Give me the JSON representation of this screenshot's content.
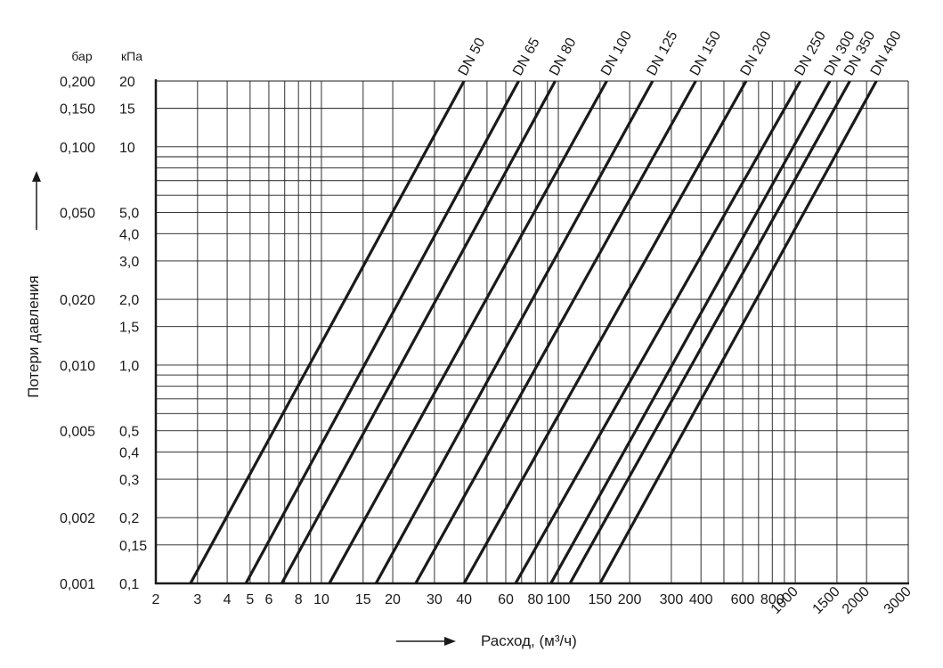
{
  "chart_data": {
    "type": "line",
    "x_scale": "log",
    "y_scale": "log",
    "xlim": [
      2,
      3000
    ],
    "ylim_kpa": [
      0.1,
      20
    ],
    "grid": true,
    "xlabel": "Расход, (м³/ч)",
    "ylabel": "Потери давления",
    "y_unit_left": "бар",
    "y_unit_right": "кПа",
    "x_ticks": [
      {
        "value": 2,
        "label": "2"
      },
      {
        "value": 3,
        "label": "3"
      },
      {
        "value": 4,
        "label": "4"
      },
      {
        "value": 5,
        "label": "5"
      },
      {
        "value": 6,
        "label": "6"
      },
      {
        "value": 8,
        "label": "8"
      },
      {
        "value": 10,
        "label": "10"
      },
      {
        "value": 15,
        "label": "15"
      },
      {
        "value": 20,
        "label": "20"
      },
      {
        "value": 30,
        "label": "30"
      },
      {
        "value": 40,
        "label": "40"
      },
      {
        "value": 60,
        "label": "60"
      },
      {
        "value": 80,
        "label": "80"
      },
      {
        "value": 100,
        "label": "100"
      },
      {
        "value": 150,
        "label": "150"
      },
      {
        "value": 200,
        "label": "200"
      },
      {
        "value": 300,
        "label": "300"
      },
      {
        "value": 400,
        "label": "400"
      },
      {
        "value": 600,
        "label": "600"
      },
      {
        "value": 800,
        "label": "800"
      }
    ],
    "x_ticks_rotated": [
      {
        "value": 1000,
        "label": "1000"
      },
      {
        "value": 1500,
        "label": "1500"
      },
      {
        "value": 2000,
        "label": "2000"
      },
      {
        "value": 3000,
        "label": "3000"
      }
    ],
    "y_ticks_kpa": [
      {
        "value": 20,
        "label": "20"
      },
      {
        "value": 15,
        "label": "15"
      },
      {
        "value": 10,
        "label": "10"
      },
      {
        "value": 5,
        "label": "5,0"
      },
      {
        "value": 4,
        "label": "4,0"
      },
      {
        "value": 3,
        "label": "3,0"
      },
      {
        "value": 2,
        "label": "2,0"
      },
      {
        "value": 1.5,
        "label": "1,5"
      },
      {
        "value": 1,
        "label": "1,0"
      },
      {
        "value": 0.5,
        "label": "0,5"
      },
      {
        "value": 0.4,
        "label": "0,4"
      },
      {
        "value": 0.3,
        "label": "0,3"
      },
      {
        "value": 0.2,
        "label": "0,2"
      },
      {
        "value": 0.15,
        "label": "0,15"
      },
      {
        "value": 0.1,
        "label": "0,1"
      }
    ],
    "y_ticks_bar": [
      {
        "value": 20,
        "label": "0,200"
      },
      {
        "value": 15,
        "label": "0,150"
      },
      {
        "value": 10,
        "label": "0,100"
      },
      {
        "value": 5,
        "label": "0,050"
      },
      {
        "value": 2,
        "label": "0,020"
      },
      {
        "value": 1,
        "label": "0,010"
      },
      {
        "value": 0.5,
        "label": "0,005"
      },
      {
        "value": 0.2,
        "label": "0,002"
      },
      {
        "value": 0.1,
        "label": "0,001"
      }
    ],
    "x_grid": [
      3,
      4,
      5,
      6,
      7,
      8,
      9,
      10,
      15,
      20,
      30,
      40,
      50,
      60,
      70,
      80,
      90,
      100,
      150,
      200,
      300,
      400,
      500,
      600,
      700,
      800,
      900,
      1000,
      1500,
      2000
    ],
    "y_grid_kpa": [
      0.15,
      0.2,
      0.3,
      0.4,
      0.5,
      0.6,
      0.7,
      0.8,
      0.9,
      1,
      1.5,
      2,
      3,
      4,
      5,
      6,
      7,
      8,
      9,
      10,
      15
    ],
    "series": [
      {
        "name": "DN 50",
        "x": [
          2.8,
          40
        ],
        "y_kpa": [
          0.1,
          20
        ]
      },
      {
        "name": "DN 65",
        "x": [
          4.8,
          68
        ],
        "y_kpa": [
          0.1,
          20
        ]
      },
      {
        "name": "DN 80",
        "x": [
          6.8,
          97
        ],
        "y_kpa": [
          0.1,
          20
        ]
      },
      {
        "name": "DN 100",
        "x": [
          10.8,
          160
        ],
        "y_kpa": [
          0.1,
          20
        ]
      },
      {
        "name": "DN 125",
        "x": [
          17,
          250
        ],
        "y_kpa": [
          0.1,
          20
        ]
      },
      {
        "name": "DN 150",
        "x": [
          25,
          380
        ],
        "y_kpa": [
          0.1,
          20
        ]
      },
      {
        "name": "DN 200",
        "x": [
          40,
          620
        ],
        "y_kpa": [
          0.1,
          20
        ]
      },
      {
        "name": "DN 250",
        "x": [
          66,
          1050
        ],
        "y_kpa": [
          0.1,
          20
        ]
      },
      {
        "name": "DN 300",
        "x": [
          93,
          1400
        ],
        "y_kpa": [
          0.1,
          20
        ]
      },
      {
        "name": "DN 350",
        "x": [
          112,
          1700
        ],
        "y_kpa": [
          0.1,
          20
        ]
      },
      {
        "name": "DN 400",
        "x": [
          150,
          2200
        ],
        "y_kpa": [
          0.1,
          20
        ]
      }
    ],
    "line_color": "#1a1a1a"
  }
}
